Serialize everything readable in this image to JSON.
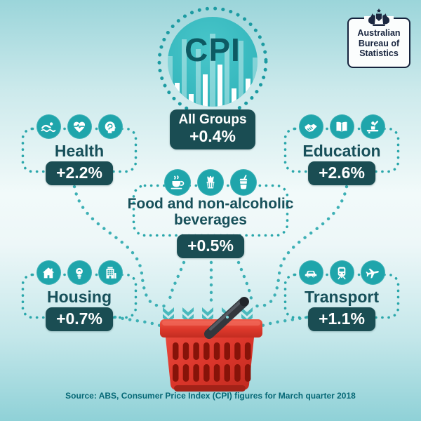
{
  "infographic": {
    "hub": {
      "title": "CPI",
      "group_label": "All Groups",
      "group_value": "+0.4%"
    },
    "logo": {
      "line1": "Australian",
      "line2": "Bureau of",
      "line3": "Statistics"
    },
    "groups": [
      {
        "label": "Health",
        "value": "+2.2%",
        "icons": [
          "swimmer-icon",
          "heart-pulse-icon",
          "brain-icon"
        ]
      },
      {
        "label": "Education",
        "value": "+2.6%",
        "icons": [
          "handshake-icon",
          "open-book-icon",
          "student-desk-icon"
        ]
      },
      {
        "label": "Food and non-alcoholic beverages",
        "value": "+0.5%",
        "icons": [
          "coffee-cup-icon",
          "fries-icon",
          "soft-drink-icon"
        ]
      },
      {
        "label": "Housing",
        "value": "+0.7%",
        "icons": [
          "house-icon",
          "lightbulb-icon",
          "building-icon"
        ]
      },
      {
        "label": "Transport",
        "value": "+1.1%",
        "icons": [
          "car-icon",
          "train-icon",
          "plane-icon"
        ]
      }
    ],
    "source_text": "Source: ABS, Consumer Price Index (CPI) figures for March quarter 2018"
  },
  "colors": {
    "accent_teal": "#1fa5ab",
    "dark_teal_badge": "#1a4d53",
    "hub_fill": "#35b7bd",
    "dot_teal": "#2aa7ab",
    "basket_red": "#dd382b",
    "background_top": "#9bd5da",
    "background_middle": "#f2fafa"
  },
  "chart_data": {
    "type": "bar",
    "title": "Consumer Price Index (CPI) percentage change, March quarter 2018",
    "categories": [
      "All Groups",
      "Health",
      "Education",
      "Food and non-alcoholic beverages",
      "Housing",
      "Transport"
    ],
    "values": [
      0.4,
      2.2,
      2.6,
      0.5,
      0.7,
      1.1
    ],
    "unit": "percent change",
    "source": "ABS"
  }
}
